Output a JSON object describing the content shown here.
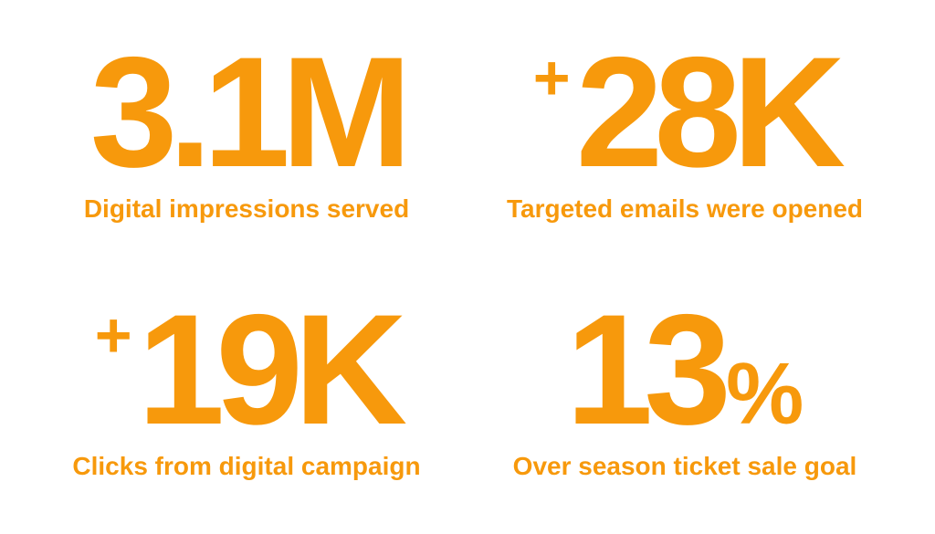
{
  "accent_color": "#F7990C",
  "stats": [
    {
      "prefix": "",
      "number": "3.1M",
      "suffix": "",
      "caption": "Digital impressions served"
    },
    {
      "prefix": "+",
      "number": "28K",
      "suffix": "",
      "caption": "Targeted emails were opened"
    },
    {
      "prefix": "+",
      "number": "19K",
      "suffix": "",
      "caption": "Clicks from digital campaign"
    },
    {
      "prefix": "",
      "number": "13",
      "suffix": "%",
      "caption": "Over season ticket sale goal"
    }
  ]
}
